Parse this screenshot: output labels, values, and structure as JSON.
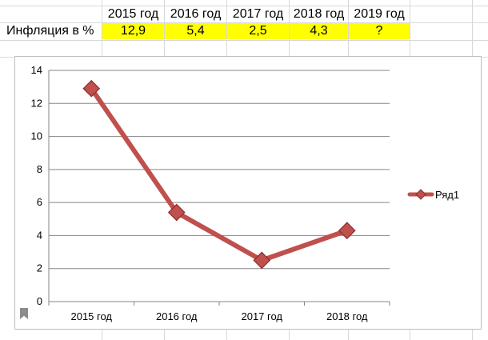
{
  "table": {
    "years": [
      "2015 год",
      "2016 год",
      "2017 год",
      "2018 год",
      "2019 год"
    ],
    "row_label": "Инфляция в %",
    "values": [
      "12,9",
      "5,4",
      "2,5",
      "4,3",
      "?"
    ],
    "highlight_color": "#ffff00"
  },
  "chart_data": {
    "type": "line",
    "categories": [
      "2015 год",
      "2016 год",
      "2017 год",
      "2018 год"
    ],
    "series": [
      {
        "name": "Ряд1",
        "values": [
          12.9,
          5.4,
          2.5,
          4.3
        ],
        "color": "#c0504d",
        "marker": "diamond"
      }
    ],
    "title": "",
    "xlabel": "",
    "ylabel": "",
    "ylim": [
      0,
      14
    ],
    "yticks": [
      "0",
      "2",
      "4",
      "6",
      "8",
      "10",
      "12",
      "14"
    ],
    "grid": true,
    "legend": "right"
  },
  "icons": {
    "bookmark": "bookmark-icon"
  }
}
